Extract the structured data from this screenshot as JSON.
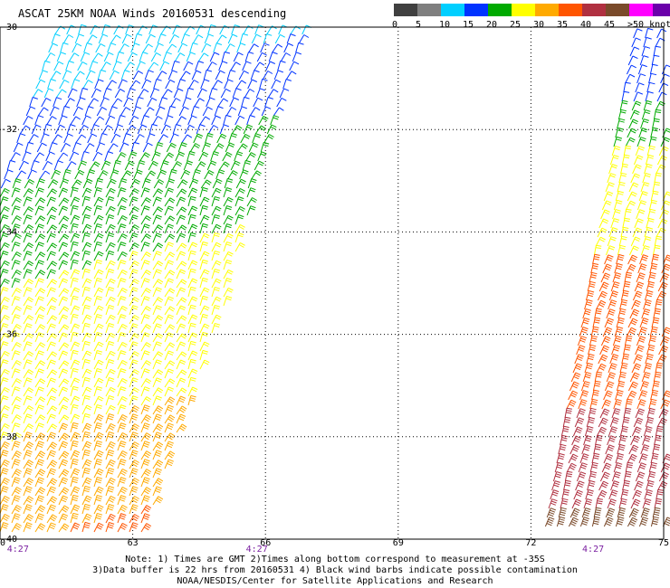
{
  "header": {
    "title": "ASCAT 25KM NOAA Winds 20160531 descending"
  },
  "scale": {
    "labels": [
      "0",
      "5",
      "10",
      "15",
      "20",
      "25",
      "30",
      "35",
      "40",
      "45",
      ">50 knots"
    ],
    "colors": [
      "#404040",
      "#7f7f7f",
      "#00cfff",
      "#0033ff",
      "#00aa00",
      "#ffff00",
      "#ffaa00",
      "#ff5500",
      "#b03040",
      "#7a4a2a",
      "#ff00ff",
      "#6a00aa"
    ]
  },
  "chart_data": {
    "type": "wind-barb map",
    "lon_range": [
      60,
      75
    ],
    "lat_range": [
      -40,
      -30
    ],
    "x_ticks": [
      "60",
      "63",
      "66",
      "69",
      "72",
      "75"
    ],
    "y_ticks": [
      "-30",
      "-32",
      "-34",
      "-36",
      "-38",
      "-40"
    ],
    "times": [
      "4:27",
      "4:27",
      "4:27"
    ],
    "swaths": [
      {
        "bands": [
          {
            "lat": -30.0,
            "knots": 10,
            "color": "#00cfff"
          },
          {
            "lat": -31.0,
            "knots": 12,
            "color": "#0033ff"
          },
          {
            "lat": -32.5,
            "knots": 16,
            "color": "#00aa00"
          },
          {
            "lat": -34.5,
            "knots": 20,
            "color": "#ffff00"
          },
          {
            "lat": -37.5,
            "knots": 25,
            "color": "#ffaa00"
          },
          {
            "lat": -39.5,
            "knots": 30,
            "color": "#ff5500"
          }
        ]
      },
      {
        "bands": [
          {
            "lat": -30.5,
            "knots": 12,
            "color": "#0033ff"
          },
          {
            "lat": -31.5,
            "knots": 15,
            "color": "#00aa00"
          },
          {
            "lat": -32.5,
            "knots": 20,
            "color": "#ffff00"
          },
          {
            "lat": -34.5,
            "knots": 28,
            "color": "#ff5500"
          },
          {
            "lat": -37.5,
            "knots": 33,
            "color": "#b03040"
          },
          {
            "lat": -39.5,
            "knots": 40,
            "color": "#7a4a2a"
          }
        ]
      }
    ]
  },
  "notes": {
    "line1": "Note: 1) Times are GMT 2)Times along bottom correspond to measurement at -35S",
    "line2": "3)Data buffer is 22 hrs from 20160531 4) Black wind barbs indicate possible contamination",
    "line3": "NOAA/NESDIS/Center for Satellite Applications and Research"
  }
}
